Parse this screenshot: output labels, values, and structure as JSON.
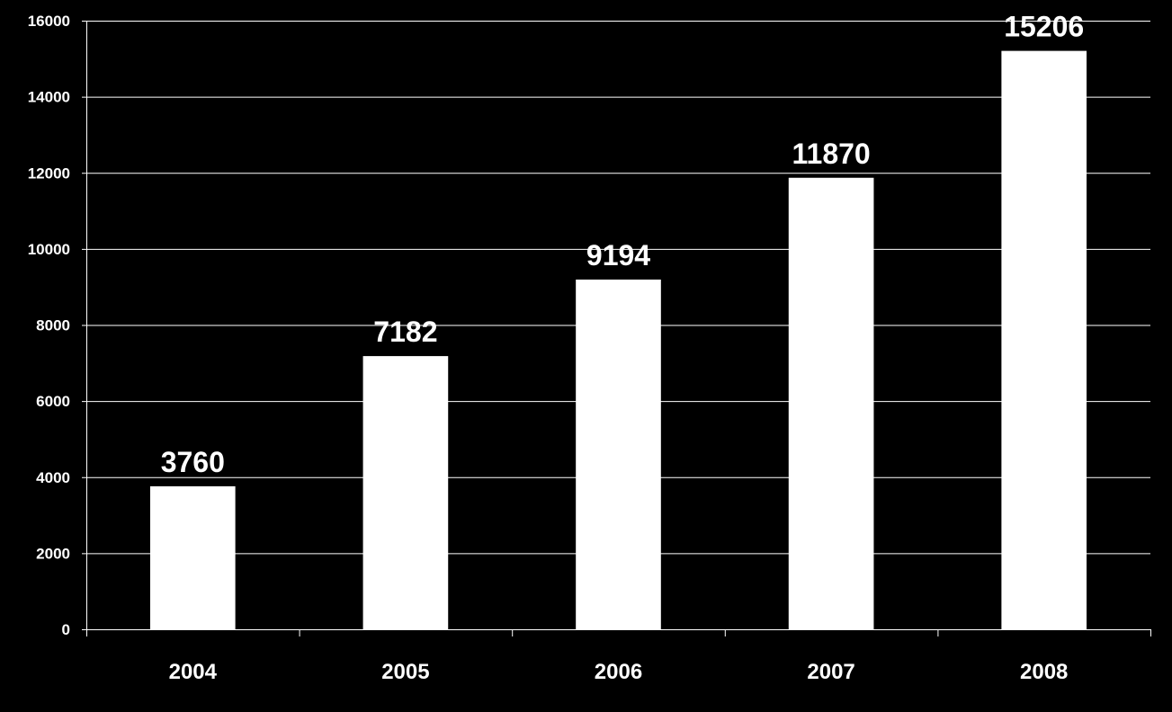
{
  "chart_data": {
    "type": "bar",
    "categories": [
      "2004",
      "2005",
      "2006",
      "2007",
      "2008"
    ],
    "values": [
      3760,
      7182,
      9194,
      11870,
      15206
    ],
    "data_labels": [
      "3760",
      "7182",
      "9194",
      "11870",
      "15206"
    ],
    "title": "",
    "xlabel": "",
    "ylabel": "",
    "ylim": [
      0,
      16000
    ],
    "y_ticks": [
      0,
      2000,
      4000,
      6000,
      8000,
      10000,
      12000,
      14000,
      16000
    ],
    "y_tick_labels": [
      "0",
      "2000",
      "4000",
      "6000",
      "8000",
      "10000",
      "12000",
      "14000",
      "16000"
    ],
    "grid": true,
    "legend": "none",
    "colors": {
      "background": "#000000",
      "bar": "#ffffff",
      "text": "#ffffff",
      "grid": "#ffffff",
      "axis": "#ffffff"
    }
  }
}
